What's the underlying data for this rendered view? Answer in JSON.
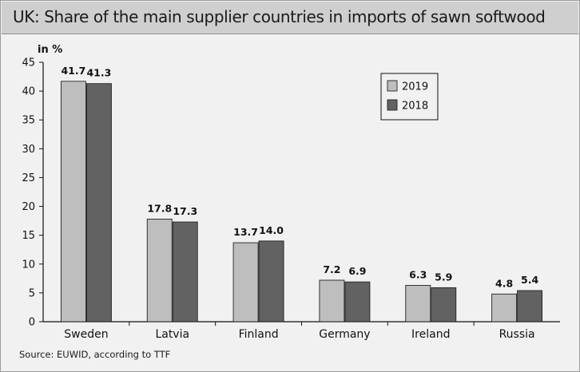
{
  "title": "UK: Share of the main supplier countries in imports of sawn softwood",
  "source": "Source: EUWID, according to TTF",
  "colors": {
    "2019": "#bebebe",
    "2018": "#626262"
  },
  "chart_data": {
    "type": "bar",
    "title": "UK: Share of the main supplier countries in imports of sawn softwood",
    "ylabel": "in %",
    "xlabel": "",
    "ylim": [
      0,
      45
    ],
    "yticks": [
      0,
      5,
      10,
      15,
      20,
      25,
      30,
      35,
      40,
      45
    ],
    "categories": [
      "Sweden",
      "Latvia",
      "Finland",
      "Germany",
      "Ireland",
      "Russia"
    ],
    "series": [
      {
        "name": "2019",
        "values": [
          41.7,
          17.8,
          13.7,
          7.2,
          6.3,
          4.8
        ],
        "labels": [
          "41.7",
          "17.8",
          "13.7",
          "7.2",
          "6.3",
          "4.8"
        ]
      },
      {
        "name": "2018",
        "values": [
          41.3,
          17.3,
          14.0,
          6.9,
          5.9,
          5.4
        ],
        "labels": [
          "41.3",
          "17.3",
          "14.0",
          "6.9",
          "5.9",
          "5.4"
        ]
      }
    ],
    "legend_position": "top-right",
    "grid": false
  }
}
